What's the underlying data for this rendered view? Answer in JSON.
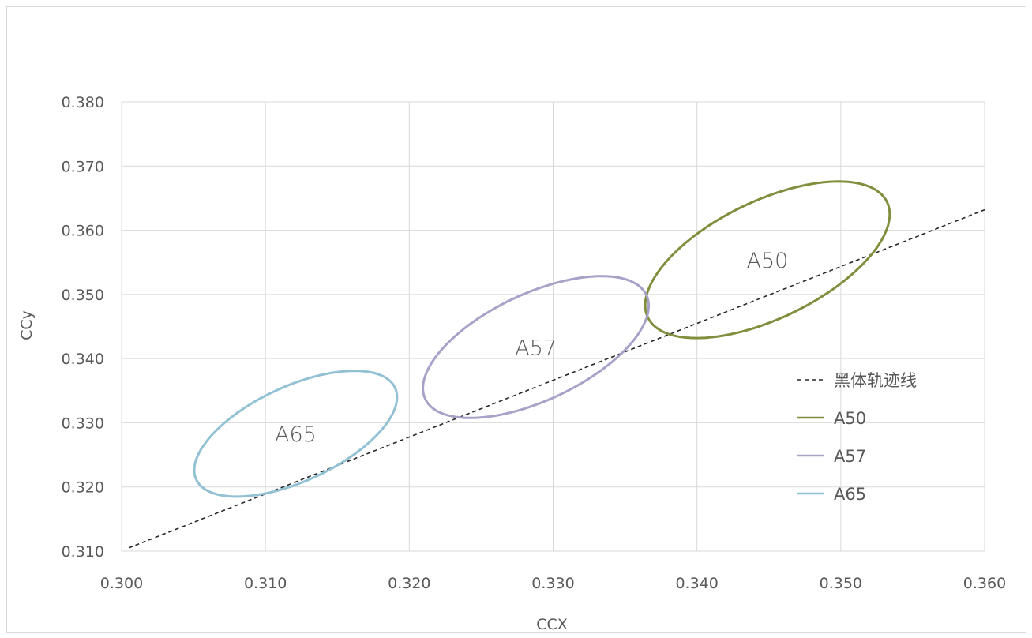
{
  "chart_data": {
    "type": "line",
    "title": "",
    "xlabel": "CCX",
    "ylabel": "CCy",
    "xlim": [
      0.3,
      0.36
    ],
    "ylim": [
      0.31,
      0.38
    ],
    "x_ticks": [
      "0.300",
      "0.310",
      "0.320",
      "0.330",
      "0.340",
      "0.350",
      "0.360"
    ],
    "y_ticks": [
      "0.310",
      "0.320",
      "0.330",
      "0.340",
      "0.350",
      "0.360",
      "0.370",
      "0.380"
    ],
    "grid": true,
    "legend_position": "right",
    "series": [
      {
        "name": "黑体轨迹线",
        "style": "dashed",
        "color": "#262626",
        "x": [
          0.3005,
          0.36
        ],
        "y": [
          0.3105,
          0.3632
        ]
      },
      {
        "name": "A50",
        "style": "solid",
        "color": "#7f8f3d",
        "ellipse": {
          "cx": 0.3449,
          "cy": 0.3554,
          "x_min": 0.3363,
          "x_max": 0.3533,
          "y_min": 0.3432,
          "y_max": 0.3676
        },
        "label": "A50"
      },
      {
        "name": "A57",
        "style": "solid",
        "color": "#a9a2c8",
        "ellipse": {
          "cx": 0.3288,
          "cy": 0.3418,
          "x_min": 0.321,
          "x_max": 0.3367,
          "y_min": 0.3307,
          "y_max": 0.3528
        },
        "label": "A57"
      },
      {
        "name": "A65",
        "style": "solid",
        "color": "#93c1d4",
        "ellipse": {
          "cx": 0.3121,
          "cy": 0.3283,
          "x_min": 0.3052,
          "x_max": 0.3193,
          "y_min": 0.3185,
          "y_max": 0.3381
        },
        "label": "A65"
      }
    ]
  }
}
